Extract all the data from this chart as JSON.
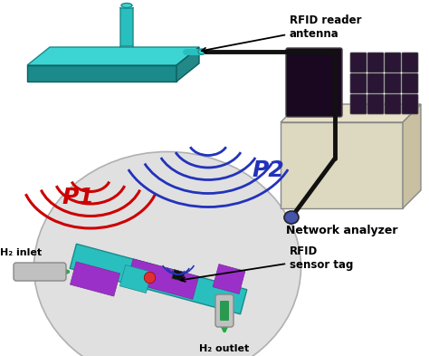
{
  "bg_color": "#ffffff",
  "antenna_color": "#2abfbf",
  "antenna_plate_top": "#3dd4d4",
  "antenna_plate_side": "#1a8a8a",
  "wave_p1_color": "#cc0000",
  "wave_p2_color": "#2233bb",
  "p1_label": "P1",
  "p2_label": "P2",
  "p1_label_color": "#cc0000",
  "p2_label_color": "#2233bb",
  "network_box_color": "#e8e0c8",
  "network_box_side": "#c8c0a8",
  "network_screen_color": "#1a0820",
  "network_label": "Network analyzer",
  "rfid_tag_label": "RFID\nsensor tag",
  "rfid_antenna_label": "RFID reader\nantenna",
  "h2_inlet_label": "H₂ inlet",
  "h2_outlet_label": "H₂ outlet",
  "globe_color": "#e0e0e0",
  "globe_edge": "#b0b0b0",
  "tag_body_color": "#9b30c8",
  "tag_board_color": "#2abfbf",
  "tag_stripe_color": "#8822aa",
  "sensor_dot_color": "#e03030",
  "cable_color": "#111111",
  "tube_color": "#c0c0c0",
  "tube_green": "#2a9a50",
  "inlet_arrow_color": "#22aa44",
  "outlet_arrow_color": "#22aa44",
  "connector_color": "#4455aa"
}
